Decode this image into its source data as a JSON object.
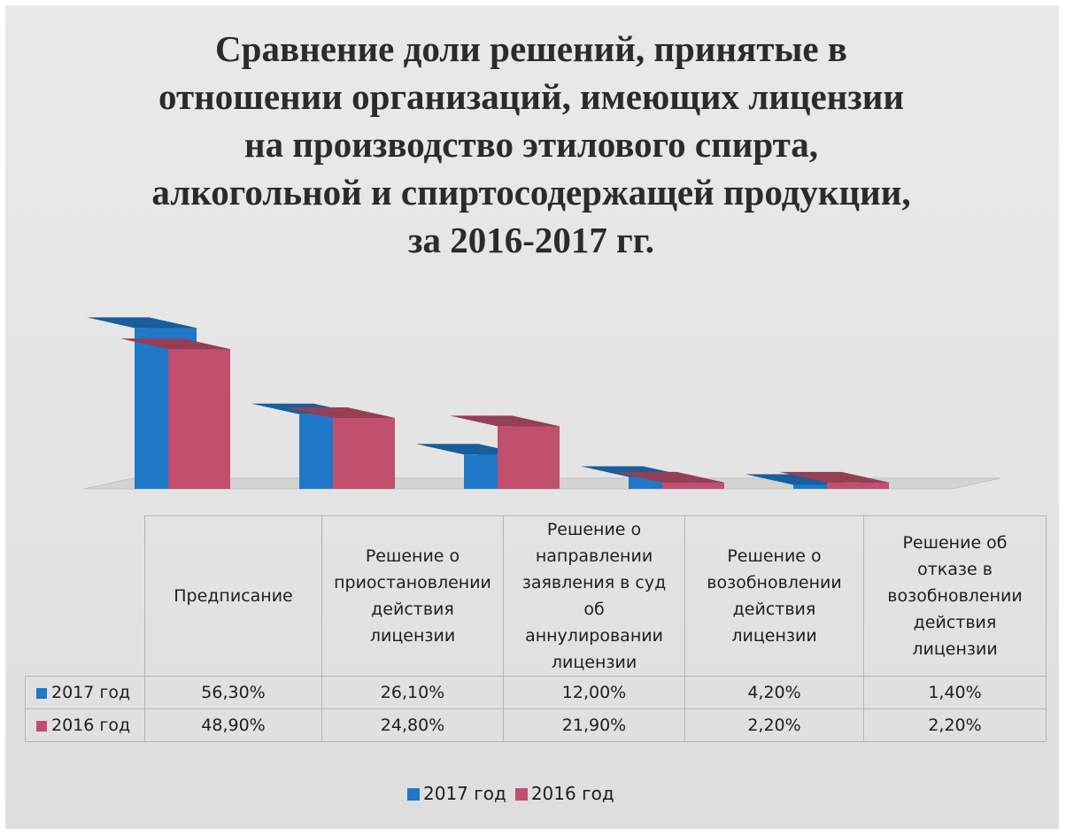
{
  "chart_data": {
    "type": "bar",
    "title": [
      "Сравнение доли решений, принятые в",
      "отношении организаций, имеющих лицензии",
      "на производство этилового спирта,",
      "алкогольной и спиртосодержащей продукции,",
      "за 2016-2017 гг."
    ],
    "categories": [
      [
        "Предписание"
      ],
      [
        "Решение о",
        "приостановлении",
        "действия",
        "лицензии"
      ],
      [
        "Решение о",
        "направлении",
        "заявления в суд",
        "об",
        "аннулировании",
        "лицензии"
      ],
      [
        "Решение о",
        "возобновлении",
        "действия",
        "лицензии"
      ],
      [
        "Решение об",
        "отказе в",
        "возобновлении",
        "действия",
        "лицензии"
      ]
    ],
    "series": [
      {
        "name": "2017 год",
        "color": "#1f78c8",
        "values": [
          56.3,
          26.1,
          12.0,
          4.2,
          1.4
        ],
        "labels": [
          "56,30%",
          "26,10%",
          "12,00%",
          "4,20%",
          "1,40%"
        ]
      },
      {
        "name": "2016 год",
        "color": "#c0506e",
        "values": [
          48.9,
          24.8,
          21.9,
          2.2,
          2.2
        ],
        "labels": [
          "48,90%",
          "24,80%",
          "21,90%",
          "2,20%",
          "2,20%"
        ]
      }
    ],
    "value_unit": "%",
    "style": "3d-column",
    "data_table": true,
    "legend": "bottom",
    "grid": false
  }
}
